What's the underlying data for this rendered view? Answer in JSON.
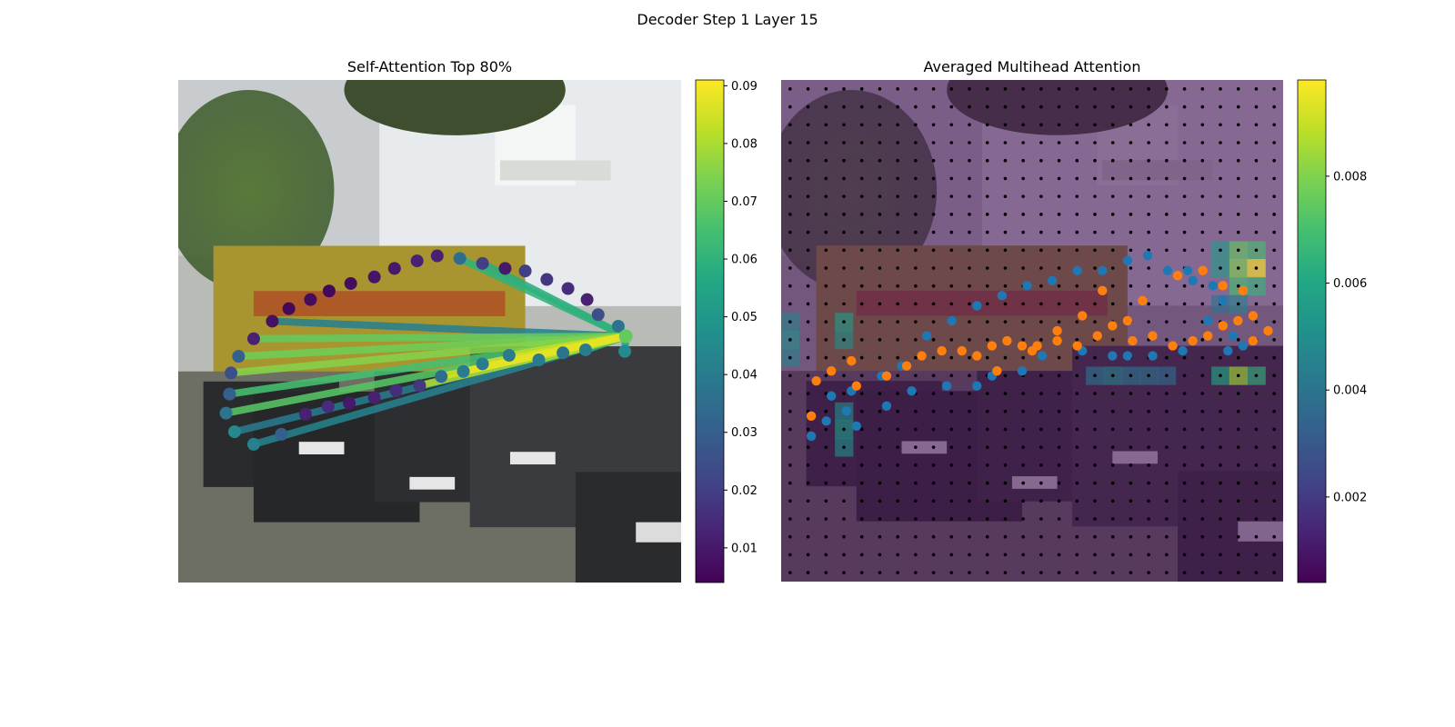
{
  "suptitle": "Decoder Step 1 Layer 15",
  "panels": [
    {
      "title": "Self-Attention Top 80%"
    },
    {
      "title": "Averaged Multihead Attention"
    }
  ],
  "chart_data": [
    {
      "type": "scatter",
      "title": "Self-Attention Top 80%",
      "description_free": true,
      "image_background": "street scene with yellow delivery van and parked cars",
      "colormap": "viridis",
      "colorbar": {
        "min": 0.004,
        "max": 0.091,
        "ticks": [
          0.01,
          0.02,
          0.03,
          0.04,
          0.05,
          0.06,
          0.07,
          0.08,
          0.09
        ],
        "tick_labels": [
          "0.01",
          "0.02",
          "0.03",
          "0.04",
          "0.05",
          "0.06",
          "0.07",
          "0.08",
          "0.09"
        ]
      },
      "query_point": {
        "x": 0.89,
        "y": 0.51,
        "value": 0.07
      },
      "points": [
        {
          "x": 0.187,
          "y": 0.48,
          "v": 0.008
        },
        {
          "x": 0.22,
          "y": 0.455,
          "v": 0.006
        },
        {
          "x": 0.263,
          "y": 0.437,
          "v": 0.007
        },
        {
          "x": 0.3,
          "y": 0.42,
          "v": 0.006
        },
        {
          "x": 0.343,
          "y": 0.405,
          "v": 0.007
        },
        {
          "x": 0.39,
          "y": 0.392,
          "v": 0.009
        },
        {
          "x": 0.43,
          "y": 0.375,
          "v": 0.01
        },
        {
          "x": 0.475,
          "y": 0.36,
          "v": 0.012
        },
        {
          "x": 0.515,
          "y": 0.35,
          "v": 0.012
        },
        {
          "x": 0.56,
          "y": 0.355,
          "v": 0.035
        },
        {
          "x": 0.605,
          "y": 0.365,
          "v": 0.02
        },
        {
          "x": 0.65,
          "y": 0.375,
          "v": 0.01
        },
        {
          "x": 0.69,
          "y": 0.38,
          "v": 0.02
        },
        {
          "x": 0.733,
          "y": 0.397,
          "v": 0.018
        },
        {
          "x": 0.775,
          "y": 0.415,
          "v": 0.015
        },
        {
          "x": 0.813,
          "y": 0.437,
          "v": 0.012
        },
        {
          "x": 0.835,
          "y": 0.467,
          "v": 0.025
        },
        {
          "x": 0.875,
          "y": 0.49,
          "v": 0.037
        },
        {
          "x": 0.15,
          "y": 0.515,
          "v": 0.012
        },
        {
          "x": 0.12,
          "y": 0.55,
          "v": 0.03
        },
        {
          "x": 0.105,
          "y": 0.583,
          "v": 0.025
        },
        {
          "x": 0.102,
          "y": 0.625,
          "v": 0.03
        },
        {
          "x": 0.095,
          "y": 0.663,
          "v": 0.037
        },
        {
          "x": 0.112,
          "y": 0.7,
          "v": 0.045
        },
        {
          "x": 0.15,
          "y": 0.725,
          "v": 0.042
        },
        {
          "x": 0.205,
          "y": 0.705,
          "v": 0.03
        },
        {
          "x": 0.253,
          "y": 0.665,
          "v": 0.012
        },
        {
          "x": 0.298,
          "y": 0.65,
          "v": 0.015
        },
        {
          "x": 0.34,
          "y": 0.643,
          "v": 0.01
        },
        {
          "x": 0.39,
          "y": 0.632,
          "v": 0.012
        },
        {
          "x": 0.433,
          "y": 0.618,
          "v": 0.015
        },
        {
          "x": 0.48,
          "y": 0.608,
          "v": 0.018
        },
        {
          "x": 0.523,
          "y": 0.59,
          "v": 0.035
        },
        {
          "x": 0.567,
          "y": 0.58,
          "v": 0.04
        },
        {
          "x": 0.605,
          "y": 0.565,
          "v": 0.04
        },
        {
          "x": 0.658,
          "y": 0.548,
          "v": 0.04
        },
        {
          "x": 0.717,
          "y": 0.557,
          "v": 0.04
        },
        {
          "x": 0.765,
          "y": 0.543,
          "v": 0.037
        },
        {
          "x": 0.81,
          "y": 0.537,
          "v": 0.04
        },
        {
          "x": 0.888,
          "y": 0.54,
          "v": 0.045
        }
      ],
      "edges": [
        {
          "to": 0,
          "v": 0.042
        },
        {
          "to": 9,
          "v": 0.06
        },
        {
          "to": 10,
          "v": 0.058
        },
        {
          "to": 17,
          "v": 0.062
        },
        {
          "to": 18,
          "v": 0.07
        },
        {
          "to": 19,
          "v": 0.072
        },
        {
          "to": 20,
          "v": 0.075
        },
        {
          "to": 21,
          "v": 0.065
        },
        {
          "to": 22,
          "v": 0.068
        },
        {
          "to": 23,
          "v": 0.04
        },
        {
          "to": 24,
          "v": 0.042
        },
        {
          "to": 31,
          "v": 0.08
        },
        {
          "to": 32,
          "v": 0.085
        },
        {
          "to": 33,
          "v": 0.088
        },
        {
          "to": 34,
          "v": 0.085
        },
        {
          "to": 35,
          "v": 0.083
        },
        {
          "to": 36,
          "v": 0.08
        },
        {
          "to": 37,
          "v": 0.078
        },
        {
          "to": 38,
          "v": 0.06
        },
        {
          "to": 39,
          "v": 0.055
        }
      ]
    },
    {
      "type": "heatmap",
      "title": "Averaged Multihead Attention",
      "colormap": "viridis",
      "colorbar": {
        "min": 0.0004,
        "max": 0.0098,
        "ticks": [
          0.002,
          0.004,
          0.006,
          0.008
        ],
        "tick_labels": [
          "0.002",
          "0.004",
          "0.006",
          "0.008"
        ]
      },
      "grid_size": [
        28,
        28
      ],
      "hot_cells": [
        {
          "row": 9,
          "col": 24,
          "v": 0.0055
        },
        {
          "row": 9,
          "col": 25,
          "v": 0.0075
        },
        {
          "row": 9,
          "col": 26,
          "v": 0.007
        },
        {
          "row": 10,
          "col": 24,
          "v": 0.0055
        },
        {
          "row": 10,
          "col": 25,
          "v": 0.008
        },
        {
          "row": 10,
          "col": 26,
          "v": 0.0098
        },
        {
          "row": 11,
          "col": 25,
          "v": 0.007
        },
        {
          "row": 11,
          "col": 26,
          "v": 0.0065
        },
        {
          "row": 12,
          "col": 24,
          "v": 0.004
        },
        {
          "row": 12,
          "col": 25,
          "v": 0.0045
        },
        {
          "row": 16,
          "col": 24,
          "v": 0.006
        },
        {
          "row": 16,
          "col": 25,
          "v": 0.0085
        },
        {
          "row": 16,
          "col": 26,
          "v": 0.0065
        },
        {
          "row": 16,
          "col": 17,
          "v": 0.004
        },
        {
          "row": 16,
          "col": 18,
          "v": 0.0045
        },
        {
          "row": 16,
          "col": 19,
          "v": 0.004
        },
        {
          "row": 16,
          "col": 20,
          "v": 0.004
        },
        {
          "row": 16,
          "col": 21,
          "v": 0.0038
        },
        {
          "row": 13,
          "col": 0,
          "v": 0.0045
        },
        {
          "row": 14,
          "col": 0,
          "v": 0.005
        },
        {
          "row": 15,
          "col": 0,
          "v": 0.0045
        },
        {
          "row": 13,
          "col": 3,
          "v": 0.0055
        },
        {
          "row": 14,
          "col": 3,
          "v": 0.005
        },
        {
          "row": 18,
          "col": 3,
          "v": 0.005
        },
        {
          "row": 19,
          "col": 3,
          "v": 0.0055
        },
        {
          "row": 20,
          "col": 3,
          "v": 0.005
        }
      ],
      "series": [
        {
          "name": "",
          "color": "#1f77b4",
          "points": [
            [
              0.13,
              0.66
            ],
            [
              0.2,
              0.59
            ],
            [
              0.24,
              0.57
            ],
            [
              0.29,
              0.51
            ],
            [
              0.34,
              0.48
            ],
            [
              0.39,
              0.45
            ],
            [
              0.44,
              0.43
            ],
            [
              0.49,
              0.41
            ],
            [
              0.54,
              0.4
            ],
            [
              0.59,
              0.38
            ],
            [
              0.64,
              0.38
            ],
            [
              0.69,
              0.36
            ],
            [
              0.73,
              0.35
            ],
            [
              0.77,
              0.38
            ],
            [
              0.81,
              0.38
            ],
            [
              0.82,
              0.4
            ],
            [
              0.86,
              0.41
            ],
            [
              0.88,
              0.44
            ],
            [
              0.85,
              0.48
            ],
            [
              0.88,
              0.49
            ],
            [
              0.9,
              0.51
            ],
            [
              0.92,
              0.53
            ],
            [
              0.89,
              0.54
            ],
            [
              0.8,
              0.54
            ],
            [
              0.74,
              0.55
            ],
            [
              0.69,
              0.55
            ],
            [
              0.66,
              0.55
            ],
            [
              0.6,
              0.54
            ],
            [
              0.52,
              0.55
            ],
            [
              0.48,
              0.58
            ],
            [
              0.42,
              0.59
            ],
            [
              0.39,
              0.61
            ],
            [
              0.33,
              0.61
            ],
            [
              0.26,
              0.62
            ],
            [
              0.21,
              0.65
            ],
            [
              0.15,
              0.69
            ],
            [
              0.1,
              0.63
            ],
            [
              0.06,
              0.71
            ],
            [
              0.09,
              0.68
            ],
            [
              0.14,
              0.62
            ]
          ]
        },
        {
          "name": "",
          "color": "#ff7f0e",
          "points": [
            [
              0.06,
              0.67
            ],
            [
              0.07,
              0.6
            ],
            [
              0.1,
              0.58
            ],
            [
              0.14,
              0.56
            ],
            [
              0.15,
              0.61
            ],
            [
              0.21,
              0.59
            ],
            [
              0.25,
              0.57
            ],
            [
              0.28,
              0.55
            ],
            [
              0.32,
              0.54
            ],
            [
              0.36,
              0.54
            ],
            [
              0.39,
              0.55
            ],
            [
              0.42,
              0.53
            ],
            [
              0.45,
              0.52
            ],
            [
              0.48,
              0.53
            ],
            [
              0.51,
              0.53
            ],
            [
              0.55,
              0.52
            ],
            [
              0.59,
              0.53
            ],
            [
              0.63,
              0.51
            ],
            [
              0.66,
              0.49
            ],
            [
              0.7,
              0.52
            ],
            [
              0.74,
              0.51
            ],
            [
              0.78,
              0.53
            ],
            [
              0.82,
              0.52
            ],
            [
              0.85,
              0.51
            ],
            [
              0.88,
              0.49
            ],
            [
              0.91,
              0.48
            ],
            [
              0.94,
              0.52
            ],
            [
              0.97,
              0.5
            ],
            [
              0.94,
              0.47
            ],
            [
              0.92,
              0.42
            ],
            [
              0.88,
              0.41
            ],
            [
              0.84,
              0.38
            ],
            [
              0.79,
              0.39
            ],
            [
              0.72,
              0.44
            ],
            [
              0.69,
              0.48
            ],
            [
              0.64,
              0.42
            ],
            [
              0.6,
              0.47
            ],
            [
              0.55,
              0.5
            ],
            [
              0.5,
              0.54
            ],
            [
              0.43,
              0.58
            ]
          ]
        }
      ]
    }
  ]
}
